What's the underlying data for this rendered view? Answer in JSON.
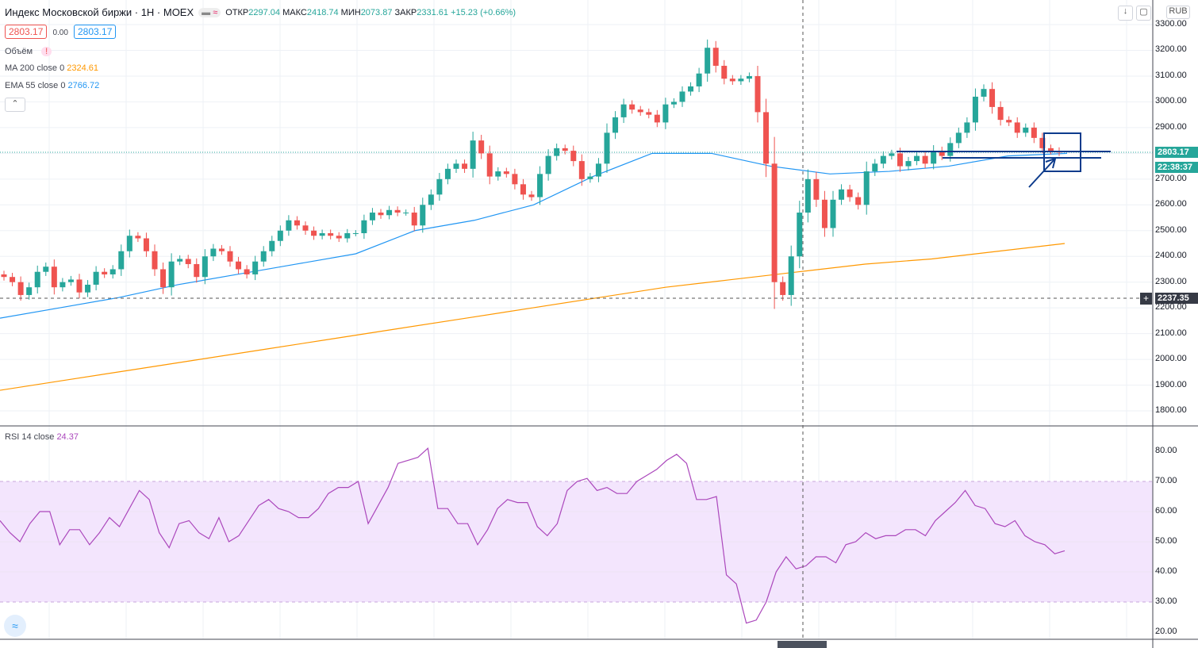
{
  "header": {
    "title": "Индекс Московской биржи · 1H · MOEX",
    "open_label": "ОТКР",
    "open": "2297.04",
    "high_label": "МАКС",
    "high": "2418.74",
    "low_label": "МИН",
    "low": "2073.87",
    "close_label": "ЗАКР",
    "close": "2331.61",
    "change": "+15.23 (+0.66%)",
    "sell": "2803.17",
    "spread": "0.00",
    "buy": "2803.17"
  },
  "indicators": {
    "volume_label": "Объём",
    "ma_label": "MA 200 close 0",
    "ma_value": "2324.61",
    "ema_label": "EMA 55 close 0",
    "ema_value": "2766.72",
    "rsi_label": "RSI 14 close",
    "rsi_value": "24.37"
  },
  "axis": {
    "currency": "RUB",
    "last_price": "2803.17",
    "countdown": "22:38:37",
    "crosshair_price": "2237.35",
    "price_ticks": [
      "3300.00",
      "3200.00",
      "3100.00",
      "3000.00",
      "2900.00",
      "2700.00",
      "2600.00",
      "2500.00",
      "2400.00",
      "2300.00",
      "2200.00",
      "2100.00",
      "2000.00",
      "1900.00",
      "1800.00"
    ],
    "rsi_ticks": [
      "80.00",
      "70.00",
      "60.00",
      "50.00",
      "40.00",
      "30.00",
      "20.00"
    ]
  },
  "colors": {
    "up": "#26a69a",
    "down": "#ef5350",
    "ma": "#ff9800",
    "ema": "#2196f3",
    "rsi": "#ab47bc",
    "drawing": "#0d3b8c"
  },
  "chart_data": {
    "type": "candlestick",
    "ylim": [
      1800,
      3300
    ],
    "rsi_ylim": [
      20,
      80
    ],
    "closes": [
      2320,
      2300,
      2250,
      2280,
      2340,
      2360,
      2280,
      2300,
      2310,
      2260,
      2290,
      2340,
      2330,
      2350,
      2420,
      2480,
      2470,
      2420,
      2350,
      2280,
      2380,
      2390,
      2370,
      2320,
      2400,
      2430,
      2420,
      2380,
      2350,
      2330,
      2380,
      2420,
      2460,
      2500,
      2540,
      2520,
      2500,
      2480,
      2490,
      2480,
      2470,
      2490,
      2490,
      2540,
      2570,
      2560,
      2580,
      2570,
      2570,
      2520,
      2600,
      2640,
      2700,
      2740,
      2760,
      2740,
      2850,
      2800,
      2710,
      2730,
      2720,
      2680,
      2640,
      2630,
      2720,
      2790,
      2820,
      2810,
      2770,
      2700,
      2710,
      2760,
      2880,
      2940,
      2990,
      2970,
      2960,
      2950,
      2920,
      2990,
      3000,
      3040,
      3060,
      3110,
      3210,
      3140,
      3090,
      3080,
      3090,
      3100,
      2960,
      2760,
      2300,
      2250,
      2400,
      2570,
      2700,
      2620,
      2510,
      2620,
      2660,
      2630,
      2600,
      2730,
      2760,
      2790,
      2800,
      2750,
      2770,
      2790,
      2760,
      2810,
      2790,
      2840,
      2880,
      2920,
      3020,
      3050,
      2980,
      2930,
      2920,
      2880,
      2900,
      2860,
      2820,
      2810,
      2803.17
    ],
    "ma200": [
      1880,
      1920,
      1960,
      2000,
      2040,
      2080,
      2120,
      2160,
      2200,
      2240,
      2280,
      2310,
      2340,
      2370,
      2390,
      2420,
      2450
    ],
    "ema55": [
      2160,
      2200,
      2240,
      2290,
      2330,
      2370,
      2410,
      2500,
      2540,
      2600,
      2710,
      2800,
      2800,
      2750,
      2720,
      2730,
      2750,
      2790,
      2800
    ],
    "rsi": [
      57,
      53,
      50,
      56,
      60,
      60,
      49,
      54,
      54,
      49,
      53,
      58,
      55,
      61,
      67,
      64,
      53,
      48,
      56,
      57,
      53,
      51,
      58,
      50,
      52,
      57,
      62,
      64,
      61,
      60,
      58,
      58,
      61,
      66,
      68,
      68,
      70,
      56,
      62,
      68,
      76,
      77,
      78,
      81,
      61,
      61,
      56,
      56,
      49,
      54,
      61,
      64,
      63,
      63,
      55,
      52,
      56,
      67,
      70,
      71,
      67,
      68,
      66,
      66,
      70,
      72,
      74,
      77,
      79,
      76,
      64,
      64,
      65,
      39,
      36,
      23,
      24,
      30,
      40,
      45,
      41,
      42,
      45,
      45,
      43,
      49,
      50,
      53,
      51,
      52,
      52,
      54,
      54,
      52,
      57,
      60,
      63,
      67,
      62,
      61,
      56,
      55,
      57,
      52,
      50,
      49,
      46,
      47
    ]
  }
}
